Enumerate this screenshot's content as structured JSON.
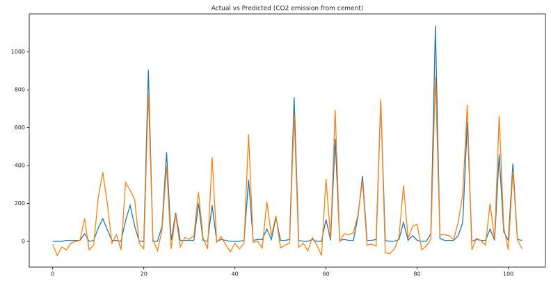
{
  "chart_data": {
    "type": "line",
    "title": "Actual vs Predicted (CO2 emission from cement)",
    "x": [
      0,
      1,
      2,
      3,
      4,
      5,
      6,
      7,
      8,
      9,
      10,
      11,
      12,
      13,
      14,
      15,
      16,
      17,
      18,
      19,
      20,
      21,
      22,
      23,
      24,
      25,
      26,
      27,
      28,
      29,
      30,
      31,
      32,
      33,
      34,
      35,
      36,
      37,
      38,
      39,
      40,
      41,
      42,
      43,
      44,
      45,
      46,
      47,
      48,
      49,
      50,
      51,
      52,
      53,
      54,
      55,
      56,
      57,
      58,
      59,
      60,
      61,
      62,
      63,
      64,
      65,
      66,
      67,
      68,
      69,
      70,
      71,
      72,
      73,
      74,
      75,
      76,
      77,
      78,
      79,
      80,
      81,
      82,
      83,
      84,
      85,
      86,
      87,
      88,
      89,
      90,
      91,
      92,
      93,
      94,
      95,
      96,
      97,
      98,
      99,
      100,
      101,
      102,
      103
    ],
    "series": [
      {
        "color": "#1f77b4",
        "values": [
          0,
          0,
          0,
          5,
          5,
          5,
          5,
          40,
          0,
          5,
          70,
          120,
          60,
          5,
          5,
          0,
          110,
          190,
          80,
          0,
          0,
          905,
          0,
          0,
          80,
          470,
          5,
          150,
          5,
          5,
          5,
          5,
          200,
          5,
          0,
          190,
          0,
          10,
          5,
          0,
          0,
          0,
          5,
          325,
          5,
          10,
          10,
          65,
          10,
          125,
          5,
          5,
          10,
          760,
          5,
          0,
          0,
          10,
          0,
          0,
          115,
          5,
          540,
          5,
          10,
          5,
          5,
          130,
          345,
          5,
          5,
          10,
          745,
          5,
          0,
          0,
          10,
          100,
          5,
          30,
          5,
          0,
          0,
          40,
          1140,
          15,
          5,
          5,
          5,
          30,
          100,
          630,
          0,
          10,
          5,
          5,
          65,
          5,
          460,
          50,
          5,
          410,
          10,
          5
        ]
      },
      {
        "color": "#ff7f0e",
        "values": [
          -15,
          -75,
          -30,
          -45,
          -10,
          0,
          5,
          120,
          -45,
          -20,
          230,
          365,
          200,
          -10,
          35,
          -45,
          310,
          270,
          220,
          -10,
          -40,
          785,
          10,
          -50,
          60,
          400,
          -40,
          140,
          -30,
          20,
          10,
          30,
          260,
          20,
          -40,
          445,
          -5,
          25,
          -20,
          -55,
          -10,
          -40,
          -10,
          565,
          -5,
          0,
          -35,
          210,
          30,
          135,
          -35,
          -20,
          -10,
          670,
          -30,
          -10,
          -50,
          20,
          -20,
          -75,
          330,
          15,
          695,
          0,
          40,
          35,
          45,
          140,
          320,
          -20,
          -15,
          -25,
          750,
          -60,
          -65,
          -40,
          20,
          295,
          15,
          80,
          90,
          -45,
          -25,
          10,
          870,
          35,
          35,
          30,
          10,
          100,
          250,
          720,
          -45,
          15,
          5,
          -20,
          200,
          10,
          665,
          75,
          -45,
          370,
          10,
          -40
        ]
      }
    ],
    "xlim": [
      -5.15,
      108.15
    ],
    "xticks": [
      0,
      20,
      40,
      60,
      80,
      100
    ],
    "ylim": [
      -136,
      1201
    ],
    "yticks": [
      0,
      200,
      400,
      600,
      800,
      1000
    ]
  }
}
